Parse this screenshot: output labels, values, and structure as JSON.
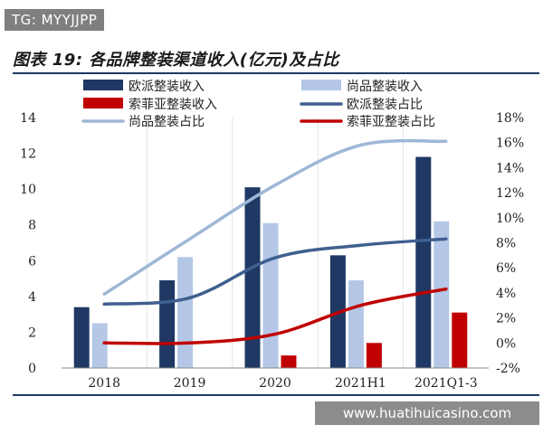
{
  "watermark_top": "TG: MYYJJPP",
  "watermark_bottom": "www.huatihuicasino.com",
  "colors": {
    "oupai_revenue": "#1f3864",
    "shangpin_revenue": "#b4c7e7",
    "suofeiya_revenue": "#c00000",
    "oupai_share": "#3f5f8f",
    "shangpin_share": "#9fb7d6",
    "suofeiya_share": "#c00000",
    "rule": "#1f3864"
  },
  "chart_data": {
    "type": "bar",
    "title": "图表 19: 各品牌整装渠道收入(亿元)及占比",
    "categories": [
      "2018",
      "2019",
      "2020",
      "2021H1",
      "2021Q1-3"
    ],
    "y_left": {
      "lim": [
        0,
        14
      ],
      "ticks": [
        "0",
        "2",
        "4",
        "6",
        "8",
        "10",
        "12",
        "14"
      ]
    },
    "y_right": {
      "lim": [
        -2,
        18
      ],
      "ticks": [
        "-2%",
        "0%",
        "2%",
        "4%",
        "6%",
        "8%",
        "10%",
        "12%",
        "14%",
        "16%",
        "18%"
      ]
    },
    "legend_rows": [
      [
        "欧派整装收入",
        "尚品整装收入"
      ],
      [
        "索菲亚整装收入",
        "欧派整装占比"
      ],
      [
        "尚品整装占比",
        "索菲亚整装占比"
      ]
    ],
    "bar_series": [
      {
        "name": "欧派整装收入",
        "values": [
          3.4,
          4.9,
          10.1,
          6.3,
          11.8
        ]
      },
      {
        "name": "尚品整装收入",
        "values": [
          2.5,
          6.2,
          8.1,
          4.9,
          8.2
        ]
      },
      {
        "name": "索菲亚整装收入",
        "values": [
          0.0,
          0.0,
          0.7,
          1.4,
          3.1
        ]
      }
    ],
    "line_series": [
      {
        "name": "欧派整装占比",
        "axis": "right",
        "values": [
          3.1,
          3.6,
          6.8,
          7.8,
          8.3
        ]
      },
      {
        "name": "尚品整装占比",
        "axis": "right",
        "values": [
          3.9,
          8.3,
          12.6,
          15.8,
          16.1
        ]
      },
      {
        "name": "索菲亚整装占比",
        "axis": "right",
        "values": [
          0.0,
          0.0,
          0.7,
          3.0,
          4.3
        ]
      }
    ]
  }
}
